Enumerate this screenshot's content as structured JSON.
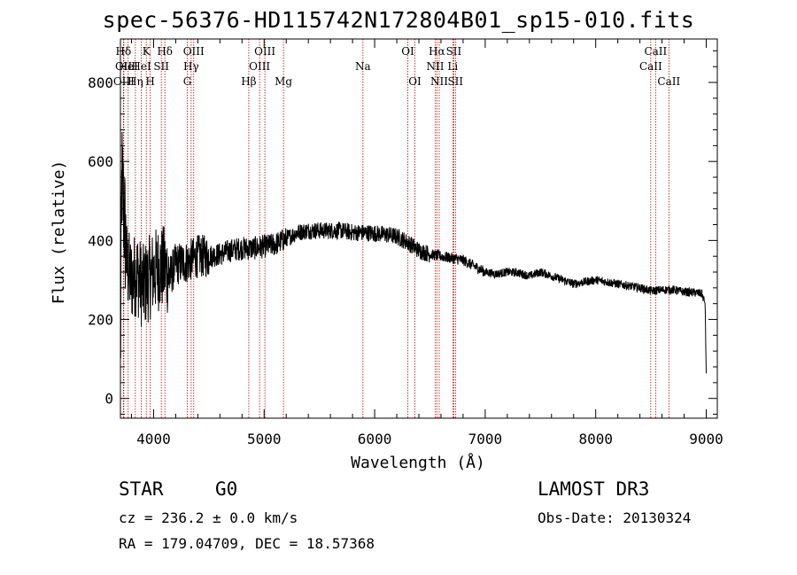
{
  "title": "spec-56376-HD115742N172804B01_sp15-010.fits",
  "info": {
    "class": "STAR",
    "subclass": "G0",
    "survey": "LAMOST DR3",
    "cz": "cz = 236.2 ± 0.0 km/s",
    "obs_date": "Obs-Date: 20130324",
    "radec": "RA = 179.04709, DEC =  18.57368"
  },
  "colors": {
    "line": "#000000",
    "marker": "#c00000",
    "axis": "#000000"
  },
  "chart_data": {
    "type": "line",
    "title": "spec-56376-HD115742N172804B01_sp15-010.fits",
    "xlabel": "Wavelength (Å)",
    "ylabel": "Flux (relative)",
    "xlim": [
      3700,
      9100
    ],
    "ylim": [
      -50,
      910
    ],
    "xticks": [
      4000,
      5000,
      6000,
      7000,
      8000,
      9000
    ],
    "yticks": [
      0,
      200,
      400,
      600,
      800
    ],
    "spectrum_anchors": [
      [
        3700,
        80
      ],
      [
        3712,
        560
      ],
      [
        3730,
        480
      ],
      [
        3760,
        330
      ],
      [
        3800,
        300
      ],
      [
        3850,
        320
      ],
      [
        3900,
        280
      ],
      [
        3950,
        300
      ],
      [
        4000,
        320
      ],
      [
        4050,
        330
      ],
      [
        4100,
        330
      ],
      [
        4150,
        310
      ],
      [
        4200,
        340
      ],
      [
        4300,
        345
      ],
      [
        4400,
        360
      ],
      [
        4500,
        360
      ],
      [
        4600,
        365
      ],
      [
        4700,
        375
      ],
      [
        4800,
        380
      ],
      [
        4900,
        380
      ],
      [
        5000,
        385
      ],
      [
        5100,
        390
      ],
      [
        5200,
        405
      ],
      [
        5300,
        420
      ],
      [
        5400,
        425
      ],
      [
        5500,
        425
      ],
      [
        5600,
        425
      ],
      [
        5700,
        425
      ],
      [
        5800,
        420
      ],
      [
        5900,
        420
      ],
      [
        6000,
        418
      ],
      [
        6100,
        415
      ],
      [
        6200,
        410
      ],
      [
        6300,
        395
      ],
      [
        6400,
        375
      ],
      [
        6500,
        365
      ],
      [
        6600,
        360
      ],
      [
        6700,
        355
      ],
      [
        6800,
        350
      ],
      [
        6900,
        335
      ],
      [
        7000,
        320
      ],
      [
        7100,
        315
      ],
      [
        7200,
        320
      ],
      [
        7300,
        318
      ],
      [
        7400,
        310
      ],
      [
        7500,
        320
      ],
      [
        7600,
        310
      ],
      [
        7700,
        300
      ],
      [
        7800,
        290
      ],
      [
        7900,
        295
      ],
      [
        8000,
        300
      ],
      [
        8100,
        295
      ],
      [
        8200,
        290
      ],
      [
        8300,
        285
      ],
      [
        8400,
        280
      ],
      [
        8500,
        272
      ],
      [
        8600,
        275
      ],
      [
        8700,
        275
      ],
      [
        8800,
        270
      ],
      [
        8900,
        268
      ],
      [
        8960,
        265
      ],
      [
        8990,
        240
      ],
      [
        9000,
        60
      ]
    ],
    "emission_lines": [
      {
        "label": "Hδ",
        "wavelength": 3727,
        "row": 1
      },
      {
        "label": "OII",
        "wavelength": 3729,
        "row": 2
      },
      {
        "label": "OIII",
        "wavelength": 3731,
        "row": 3
      },
      {
        "label": "HeI",
        "wavelength": 3770,
        "row": 2
      },
      {
        "label": "Hη",
        "wavelength": 3835,
        "row": 3
      },
      {
        "label": "K",
        "wavelength": 3934,
        "row": 1
      },
      {
        "label": "HeI",
        "wavelength": 3889,
        "row": 2
      },
      {
        "label": "SII",
        "wavelength": 4070,
        "row": 2
      },
      {
        "label": "H",
        "wavelength": 3969,
        "row": 3
      },
      {
        "label": "Hδ",
        "wavelength": 4102,
        "row": 1
      },
      {
        "label": "OIII",
        "wavelength": 4363,
        "row": 1
      },
      {
        "label": "Hγ",
        "wavelength": 4340,
        "row": 2
      },
      {
        "label": "G",
        "wavelength": 4305,
        "row": 3
      },
      {
        "label": "Hβ",
        "wavelength": 4861,
        "row": 3
      },
      {
        "label": "OIII",
        "wavelength": 5007,
        "row": 1
      },
      {
        "label": "OIII",
        "wavelength": 4959,
        "row": 2
      },
      {
        "label": "Mg",
        "wavelength": 5175,
        "row": 3
      },
      {
        "label": "Na",
        "wavelength": 5894,
        "row": 2
      },
      {
        "label": "OI",
        "wavelength": 6300,
        "row": 1
      },
      {
        "label": "OI",
        "wavelength": 6364,
        "row": 3
      },
      {
        "label": "Hα",
        "wavelength": 6563,
        "row": 1
      },
      {
        "label": "SII",
        "wavelength": 6716,
        "row": 1
      },
      {
        "label": "NII",
        "wavelength": 6548,
        "row": 2
      },
      {
        "label": "Li",
        "wavelength": 6707,
        "row": 2
      },
      {
        "label": "NII",
        "wavelength": 6584,
        "row": 3
      },
      {
        "label": "SII",
        "wavelength": 6731,
        "row": 3
      },
      {
        "label": "CaII",
        "wavelength": 8542,
        "row": 1
      },
      {
        "label": "CaII",
        "wavelength": 8498,
        "row": 2
      },
      {
        "label": "CaII",
        "wavelength": 8662,
        "row": 3
      }
    ]
  }
}
